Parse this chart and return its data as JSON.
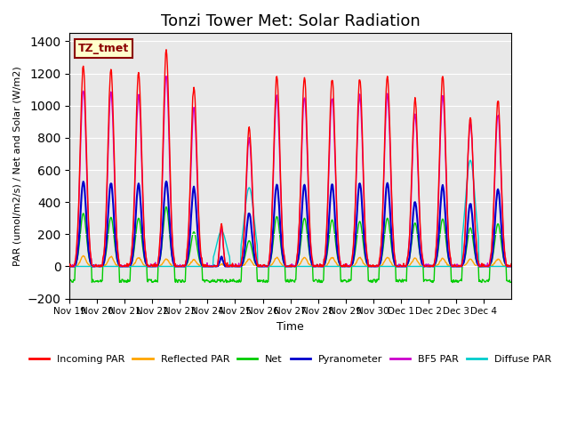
{
  "title": "Tonzi Tower Met: Solar Radiation",
  "ylabel": "PAR (umol/m2/s) / Net and Solar (W/m2)",
  "xlabel": "Time",
  "annotation": "TZ_tmet",
  "ylim": [
    -200,
    1450
  ],
  "yticks": [
    -200,
    0,
    200,
    400,
    600,
    800,
    1000,
    1200,
    1400
  ],
  "xtick_positions": [
    0,
    1,
    2,
    3,
    4,
    5,
    6,
    7,
    8,
    9,
    10,
    11,
    12,
    13,
    14,
    15
  ],
  "xtick_labels": [
    "Nov 19",
    "Nov 20",
    "Nov 21",
    "Nov 22",
    "Nov 23",
    "Nov 24",
    "Nov 25",
    "Nov 26",
    "Nov 27",
    "Nov 28",
    "Nov 29",
    "Nov 30",
    "Dec 1",
    "Dec 2",
    "Dec 3",
    "Dec 4"
  ],
  "bg_color": "#e8e8e8",
  "legend": [
    {
      "label": "Incoming PAR",
      "color": "#ff0000"
    },
    {
      "label": "Reflected PAR",
      "color": "#ffa500"
    },
    {
      "label": "Net",
      "color": "#00cc00"
    },
    {
      "label": "Pyranometer",
      "color": "#0000cc"
    },
    {
      "label": "BF5 PAR",
      "color": "#cc00cc"
    },
    {
      "label": "Diffuse PAR",
      "color": "#00cccc"
    }
  ],
  "n_days": 16,
  "pts_per_day": 48,
  "day_peaks": {
    "incoming_par": [
      1240,
      1220,
      1200,
      1340,
      1120,
      270,
      860,
      1180,
      1175,
      1170,
      1170,
      1190,
      1040,
      1185,
      930,
      1025
    ],
    "reflected_par": [
      65,
      60,
      55,
      45,
      40,
      15,
      45,
      55,
      55,
      55,
      55,
      55,
      50,
      50,
      45,
      45
    ],
    "net": [
      330,
      305,
      300,
      370,
      215,
      0,
      160,
      310,
      300,
      290,
      280,
      300,
      270,
      295,
      240,
      265
    ],
    "pyranometer": [
      530,
      520,
      510,
      530,
      490,
      60,
      330,
      510,
      510,
      510,
      520,
      520,
      400,
      500,
      390,
      480
    ],
    "bf5_par": [
      1100,
      1080,
      1060,
      1190,
      980,
      240,
      790,
      1060,
      1060,
      1050,
      1060,
      1070,
      950,
      1060,
      900,
      940
    ],
    "diffuse_par": [
      0,
      0,
      0,
      0,
      0,
      220,
      490,
      0,
      0,
      0,
      0,
      0,
      0,
      0,
      660,
      0
    ]
  },
  "net_night": -90,
  "random_seed": 42
}
